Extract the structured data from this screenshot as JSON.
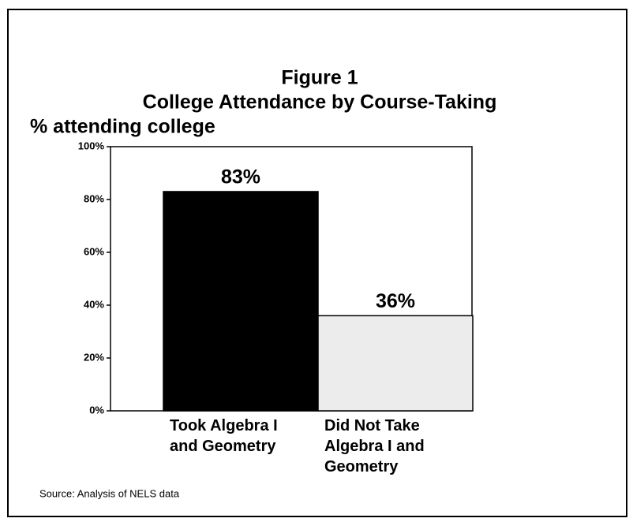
{
  "chart_data": {
    "type": "bar",
    "title": "Figure 1",
    "subtitle": "College Attendance by Course-Taking",
    "y_label": "% attending college",
    "source": "Source: Analysis of NELS data",
    "categories": [
      "Took Algebra I and Geometry",
      "Did Not Take Algebra I and Geometry"
    ],
    "values": [
      83,
      36
    ],
    "value_labels": [
      "83%",
      "36%"
    ],
    "colors": [
      "#000000",
      "#ececec"
    ],
    "ylim": [
      0,
      100
    ],
    "yticks": [
      {
        "value": 0,
        "label": "0%"
      },
      {
        "value": 20,
        "label": "20%"
      },
      {
        "value": 40,
        "label": "40%"
      },
      {
        "value": 60,
        "label": "60%"
      },
      {
        "value": 80,
        "label": "80%"
      },
      {
        "value": 100,
        "label": "100%"
      }
    ]
  }
}
